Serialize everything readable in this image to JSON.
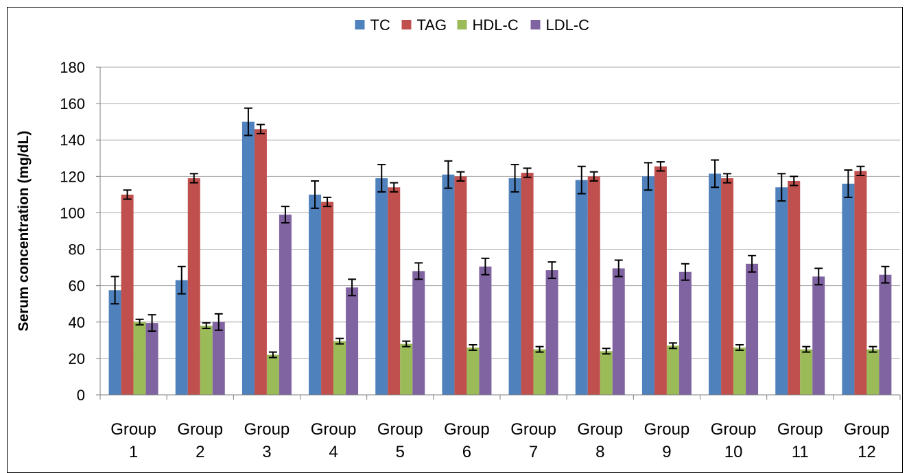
{
  "chart_data": {
    "type": "bar",
    "title": "",
    "xlabel": "",
    "ylabel": "Serum concentration (mg/dL)",
    "ylim": [
      0,
      180
    ],
    "yticks": [
      0,
      20,
      40,
      60,
      80,
      100,
      120,
      140,
      160,
      180
    ],
    "grid": true,
    "legend_position": "top",
    "categories": [
      [
        "Group",
        "1"
      ],
      [
        "Group",
        "2"
      ],
      [
        "Group",
        "3"
      ],
      [
        "Group",
        "4"
      ],
      [
        "Group",
        "5"
      ],
      [
        "Group",
        "6"
      ],
      [
        "Group",
        "7"
      ],
      [
        "Group",
        "8"
      ],
      [
        "Group",
        "9"
      ],
      [
        "Group",
        "10"
      ],
      [
        "Group",
        "11"
      ],
      [
        "Group",
        "12"
      ]
    ],
    "series": [
      {
        "name": "TC",
        "color": "#4F81BD",
        "values": [
          57.5,
          63,
          150,
          110,
          119,
          121,
          119,
          118,
          120,
          121.5,
          114,
          116
        ],
        "errors": [
          7.5,
          7.5,
          7.5,
          7.5,
          7.5,
          7.5,
          7.5,
          7.5,
          7.5,
          7.5,
          7.5,
          7.5
        ]
      },
      {
        "name": "TAG",
        "color": "#C0504D",
        "values": [
          110,
          119,
          146,
          106,
          114,
          120,
          122,
          120,
          125.5,
          119,
          117.5,
          123
        ],
        "errors": [
          2.5,
          2.5,
          2.5,
          2.5,
          2.5,
          2.5,
          2.5,
          2.5,
          2.5,
          2.5,
          2.5,
          2.5
        ]
      },
      {
        "name": "HDL-C",
        "color": "#9BBB59",
        "values": [
          40,
          38,
          22,
          29.5,
          28,
          26,
          25,
          24,
          27,
          26,
          25,
          25
        ],
        "errors": [
          1.5,
          1.5,
          1.5,
          1.5,
          1.5,
          1.5,
          1.5,
          1.5,
          1.5,
          1.5,
          1.5,
          1.5
        ]
      },
      {
        "name": "LDL-C",
        "color": "#8064A2",
        "values": [
          39.5,
          40,
          99,
          59,
          68,
          70.5,
          68.5,
          69.5,
          67.5,
          72,
          65,
          66
        ],
        "errors": [
          4.5,
          4.5,
          4.5,
          4.5,
          4.5,
          4.5,
          4.5,
          4.5,
          4.5,
          4.5,
          4.5,
          4.5
        ]
      }
    ]
  }
}
